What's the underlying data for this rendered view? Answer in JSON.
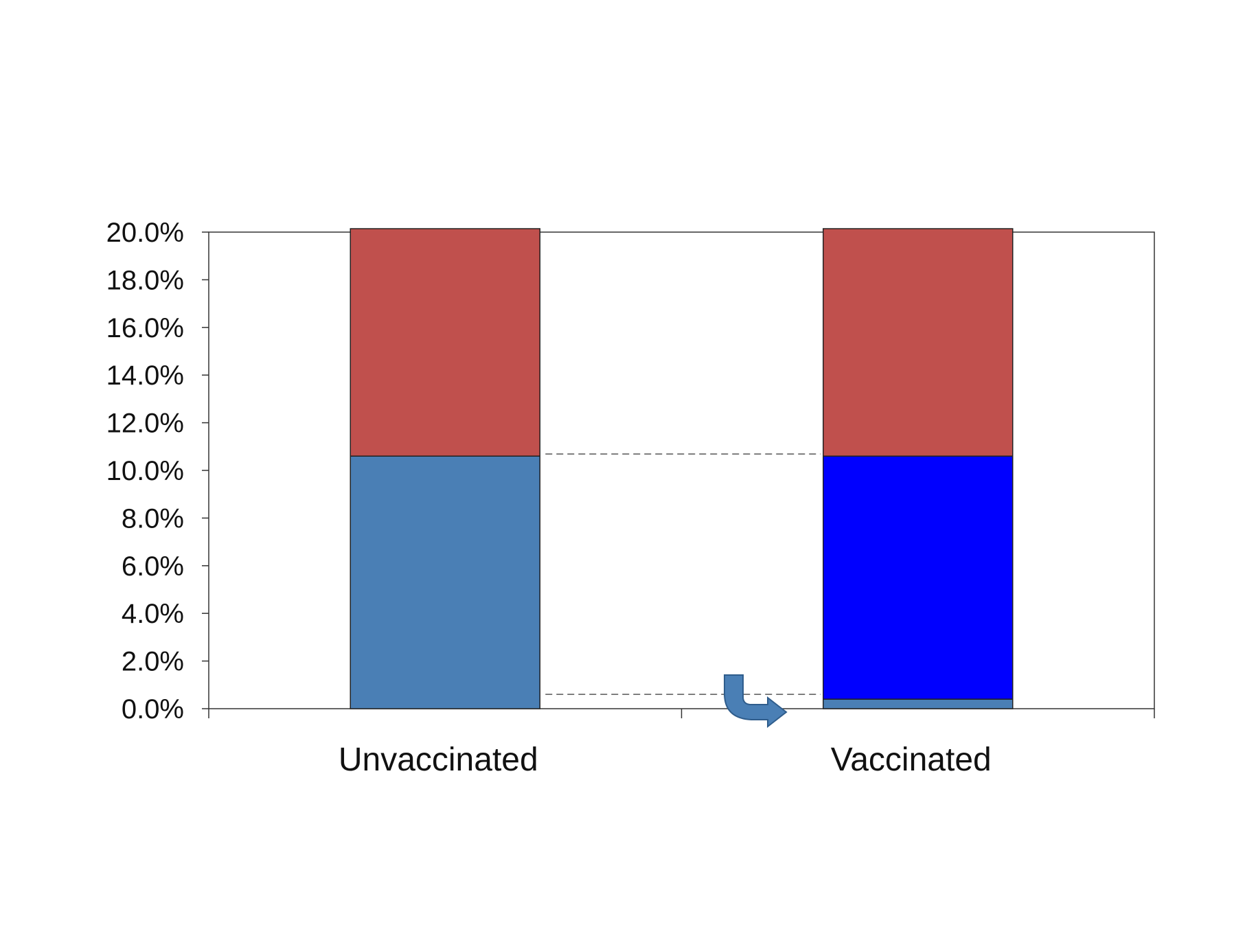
{
  "chart_data": {
    "type": "bar",
    "stacked": true,
    "categories": [
      "Unvaccinated",
      "Vaccinated"
    ],
    "series": [
      {
        "values": [
          10.6,
          0.4
        ],
        "color": "#4a7fb5"
      },
      {
        "values": [
          0.0,
          10.2
        ],
        "color": "#0000ff"
      },
      {
        "values": [
          9.4,
          9.4
        ],
        "color": "#c0504d"
      }
    ],
    "ylim": [
      0,
      20
    ],
    "yticks": [
      "0.0%",
      "2.0%",
      "4.0%",
      "6.0%",
      "8.0%",
      "10.0%",
      "12.0%",
      "14.0%",
      "16.0%",
      "18.0%",
      "20.0%"
    ],
    "reference_lines": [
      10.6,
      0.4
    ],
    "annotation_icon": "curved-arrow-icon",
    "title": "",
    "xlabel": "",
    "ylabel": ""
  }
}
